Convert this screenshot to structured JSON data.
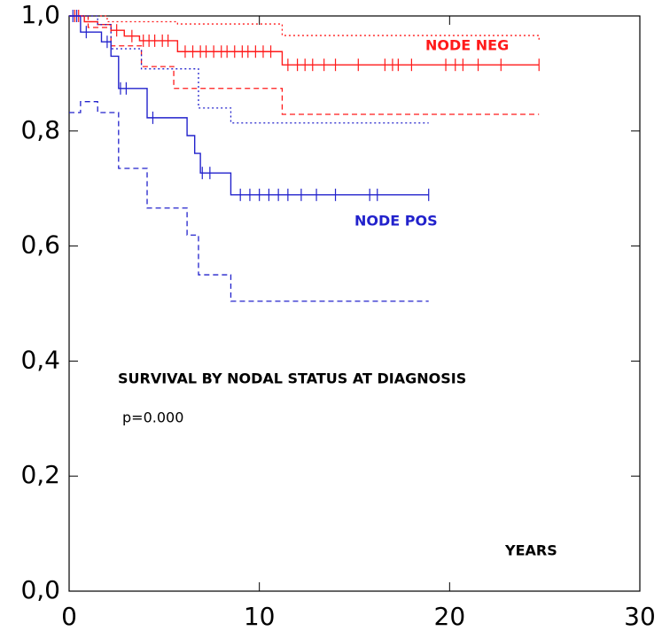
{
  "chart_data": {
    "type": "step",
    "xlim": [
      0,
      30
    ],
    "ylim": [
      0,
      1
    ],
    "xticks": [
      0,
      10,
      20,
      30
    ],
    "yticks": [
      {
        "value": 0,
        "label": "0,0"
      },
      {
        "value": 0.2,
        "label": "0,2"
      },
      {
        "value": 0.4,
        "label": "0,4"
      },
      {
        "value": 0.6,
        "label": "0,6"
      },
      {
        "value": 0.8,
        "label": "0,8"
      },
      {
        "value": 1,
        "label": "1,0"
      }
    ],
    "x_label": "YEARS",
    "annotations": [
      "SURVIVAL BY NODAL STATUS AT DIAGNOSIS",
      "p=0.000"
    ],
    "series": [
      {
        "name": "NODE NEG",
        "color": "#ff1a1a",
        "x": [
          0,
          0.8,
          1.5,
          2.2,
          2.9,
          3.7,
          5.7,
          11.2,
          24.7
        ],
        "values": [
          1,
          0.99,
          0.985,
          0.975,
          0.965,
          0.957,
          0.938,
          0.915,
          0.915
        ],
        "upper": {
          "x": [
            0,
            2.0,
            5.7,
            11.2,
            24.7
          ],
          "values": [
            1,
            0.99,
            0.986,
            0.966,
            0.957
          ]
        },
        "lower": {
          "x": [
            0,
            1.0,
            2.2,
            3.8,
            5.5,
            11.2,
            24.7
          ],
          "values": [
            1,
            0.98,
            0.948,
            0.912,
            0.874,
            0.829,
            0.829
          ]
        },
        "censored": [
          0.3,
          0.5,
          2.5,
          3.3,
          3.9,
          4.2,
          4.5,
          4.9,
          5.2,
          6.1,
          6.5,
          6.9,
          7.2,
          7.6,
          8.0,
          8.3,
          8.7,
          9.1,
          9.4,
          9.8,
          10.2,
          10.6,
          11.5,
          12.0,
          12.4,
          12.8,
          13.4,
          14.0,
          15.2,
          16.6,
          17.0,
          17.3,
          18.0,
          19.8,
          20.3,
          20.7,
          21.5,
          22.7,
          24.7
        ]
      },
      {
        "name": "NODE POS",
        "color": "#2222cc",
        "x": [
          0,
          0.6,
          1.7,
          2.2,
          2.6,
          4.1,
          6.2,
          6.6,
          6.9,
          8.5,
          18.9
        ],
        "values": [
          1,
          0.972,
          0.955,
          0.93,
          0.874,
          0.823,
          0.792,
          0.761,
          0.727,
          0.689,
          0.689
        ],
        "upper": {
          "x": [
            0,
            1.5,
            2.2,
            3.8,
            6.8,
            8.5,
            18.9
          ],
          "values": [
            1,
            0.985,
            0.943,
            0.908,
            0.84,
            0.814,
            0.814
          ]
        },
        "lower": {
          "x": [
            0,
            0.6,
            1.5,
            2.6,
            4.1,
            6.2,
            6.8,
            8.5,
            18.9
          ],
          "values": [
            0.832,
            0.851,
            0.832,
            0.735,
            0.666,
            0.619,
            0.55,
            0.504,
            0.504
          ]
        },
        "censored": [
          0.2,
          0.4,
          0.9,
          2.0,
          2.7,
          3.0,
          4.4,
          7.0,
          7.4,
          9.0,
          9.5,
          10.0,
          10.5,
          11.0,
          11.5,
          12.2,
          13.0,
          14.0,
          15.8,
          16.2,
          18.9
        ]
      }
    ]
  }
}
